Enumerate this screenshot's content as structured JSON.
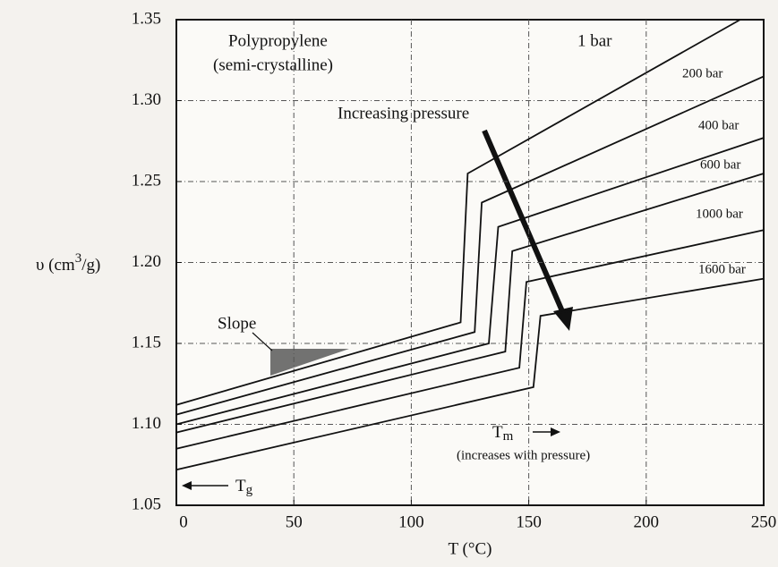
{
  "chart_data": {
    "type": "line",
    "xlabel": "T (°C)",
    "ylabel": {
      "text": "υ (cm",
      "superscript": "3",
      "suffix": "/g)"
    },
    "xlim": [
      0,
      250
    ],
    "xticks": [
      0,
      50,
      100,
      150,
      200,
      250
    ],
    "ylim": [
      1.05,
      1.35
    ],
    "yticks": [
      1.05,
      {
        "value": 1.1,
        "label": "1.10"
      },
      1.15,
      {
        "value": 1.2,
        "label": "1.20"
      },
      1.25,
      {
        "value": 1.3,
        "label": "1.30"
      },
      1.35
    ],
    "grid": true,
    "color": "#111111",
    "series": [
      {
        "name": "1 bar",
        "x": [
          0,
          121,
          124,
          240
        ],
        "values": [
          1.112,
          1.163,
          1.255,
          1.35
        ]
      },
      {
        "name": "200 bar",
        "x": [
          0,
          127,
          130,
          250
        ],
        "values": [
          1.106,
          1.157,
          1.237,
          1.315
        ]
      },
      {
        "name": "400 bar",
        "x": [
          0,
          133,
          137,
          250
        ],
        "values": [
          1.1,
          1.15,
          1.222,
          1.277
        ]
      },
      {
        "name": "600 bar",
        "x": [
          0,
          140,
          143,
          250
        ],
        "values": [
          1.095,
          1.145,
          1.207,
          1.255
        ]
      },
      {
        "name": "1000 bar",
        "x": [
          0,
          146,
          149,
          250
        ],
        "values": [
          1.085,
          1.135,
          1.188,
          1.22
        ]
      },
      {
        "name": "1600 bar",
        "x": [
          0,
          152,
          155,
          250
        ],
        "values": [
          1.072,
          1.123,
          1.167,
          1.19
        ]
      }
    ],
    "annotations": {
      "material": "Polypropylene",
      "material_note": "(semi-crystalline)",
      "pressure": "Increasing pressure",
      "slope": "Slope",
      "tm": {
        "text": "T",
        "subscript": "m"
      },
      "tm_note": "(increases with pressure)",
      "tg": {
        "text": "T",
        "subscript": "g"
      }
    }
  }
}
